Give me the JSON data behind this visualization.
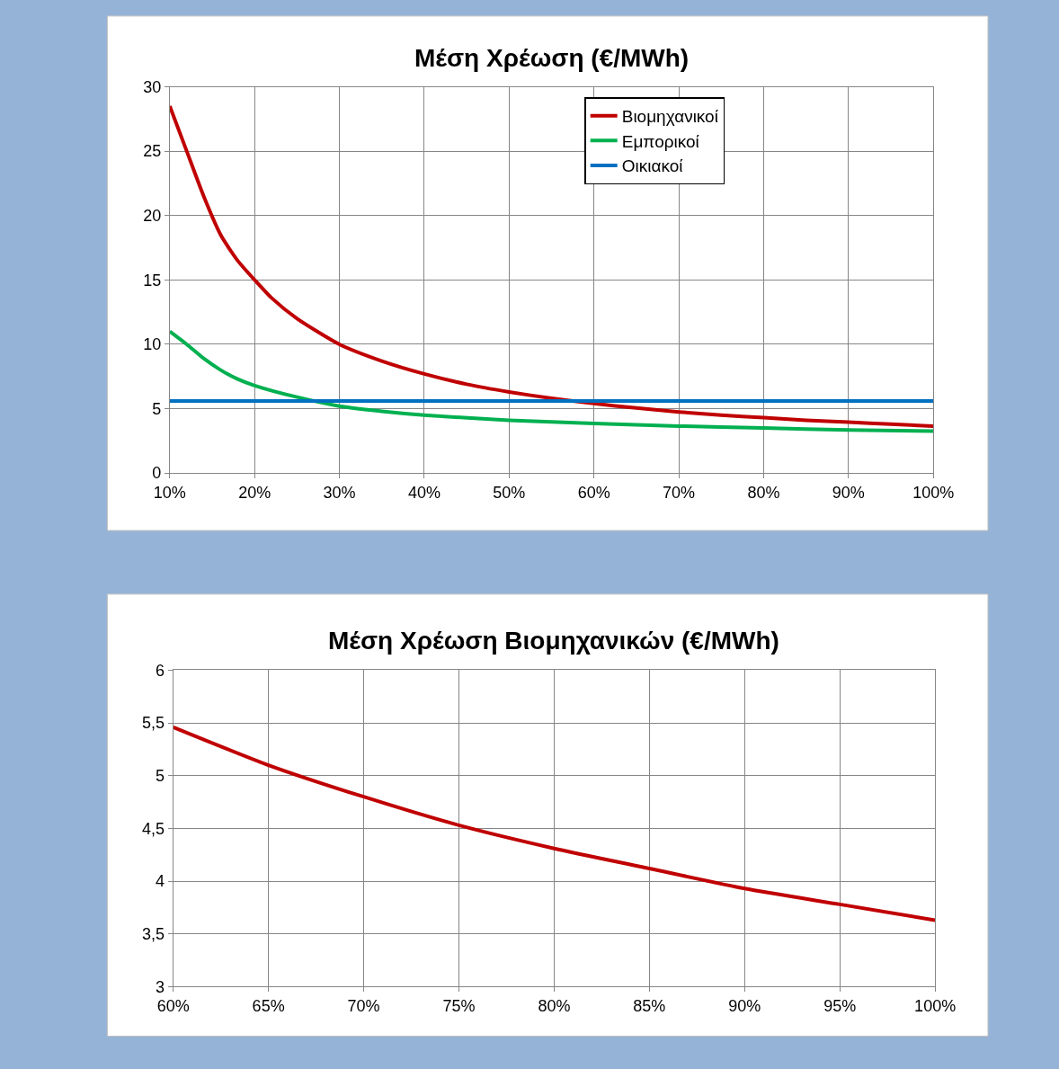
{
  "chart_data": [
    {
      "type": "line",
      "title": "Μέση Χρέωση (€/MWh)",
      "legend": "top right",
      "grid": true,
      "xlim": [
        10,
        100
      ],
      "xticks": [
        {
          "value": 10,
          "label": "10%"
        },
        {
          "value": 20,
          "label": "20%"
        },
        {
          "value": 30,
          "label": "30%"
        },
        {
          "value": 40,
          "label": "40%"
        },
        {
          "value": 50,
          "label": "50%"
        },
        {
          "value": 60,
          "label": "60%"
        },
        {
          "value": 70,
          "label": "70%"
        },
        {
          "value": 80,
          "label": "80%"
        },
        {
          "value": 90,
          "label": "90%"
        },
        {
          "value": 100,
          "label": "100%"
        }
      ],
      "ylim": [
        0,
        30
      ],
      "yticks": [
        0,
        5,
        10,
        15,
        20,
        25,
        30
      ],
      "series": [
        {
          "name": "Βιομηχανικοί",
          "color": "#c00000",
          "x": [
            10,
            12,
            14,
            16,
            18,
            20,
            22,
            25,
            30,
            35,
            40,
            45,
            50,
            55,
            60,
            65,
            70,
            75,
            80,
            85,
            90,
            95,
            100
          ],
          "values": [
            28.5,
            25,
            21.5,
            18.5,
            16.5,
            15,
            13.6,
            12,
            10,
            8.7,
            7.7,
            6.9,
            6.3,
            5.8,
            5.4,
            5.05,
            4.75,
            4.5,
            4.3,
            4.1,
            3.95,
            3.8,
            3.65
          ]
        },
        {
          "name": "Εμπορικοί",
          "color": "#00b050",
          "x": [
            10,
            12,
            14,
            16,
            18,
            20,
            25,
            30,
            35,
            40,
            50,
            60,
            70,
            80,
            90,
            100
          ],
          "values": [
            11,
            10,
            8.9,
            8,
            7.3,
            6.8,
            5.9,
            5.2,
            4.8,
            4.5,
            4.1,
            3.85,
            3.65,
            3.5,
            3.35,
            3.25
          ]
        },
        {
          "name": "Οικιακοί",
          "color": "#0070c0",
          "x": [
            10,
            100
          ],
          "values": [
            5.6,
            5.6
          ]
        }
      ]
    },
    {
      "type": "line",
      "title": "Μέση Χρέωση Βιομηχανικών (€/MWh)",
      "grid": true,
      "xlim": [
        60,
        100
      ],
      "xticks": [
        {
          "value": 60,
          "label": "60%"
        },
        {
          "value": 65,
          "label": "65%"
        },
        {
          "value": 70,
          "label": "70%"
        },
        {
          "value": 75,
          "label": "75%"
        },
        {
          "value": 80,
          "label": "80%"
        },
        {
          "value": 85,
          "label": "85%"
        },
        {
          "value": 90,
          "label": "90%"
        },
        {
          "value": 95,
          "label": "95%"
        },
        {
          "value": 100,
          "label": "100%"
        }
      ],
      "ylim": [
        3,
        6
      ],
      "yticks": [
        3,
        {
          "value": 3.5,
          "label": "3,5"
        },
        4,
        {
          "value": 4.5,
          "label": "4,5"
        },
        5,
        {
          "value": 5.5,
          "label": "5,5"
        },
        6
      ],
      "series": [
        {
          "color": "#c00000",
          "x": [
            60,
            65,
            70,
            75,
            80,
            85,
            90,
            95,
            100
          ],
          "values": [
            5.46,
            5.1,
            4.8,
            4.53,
            4.31,
            4.12,
            3.93,
            3.78,
            3.63
          ]
        }
      ]
    }
  ]
}
